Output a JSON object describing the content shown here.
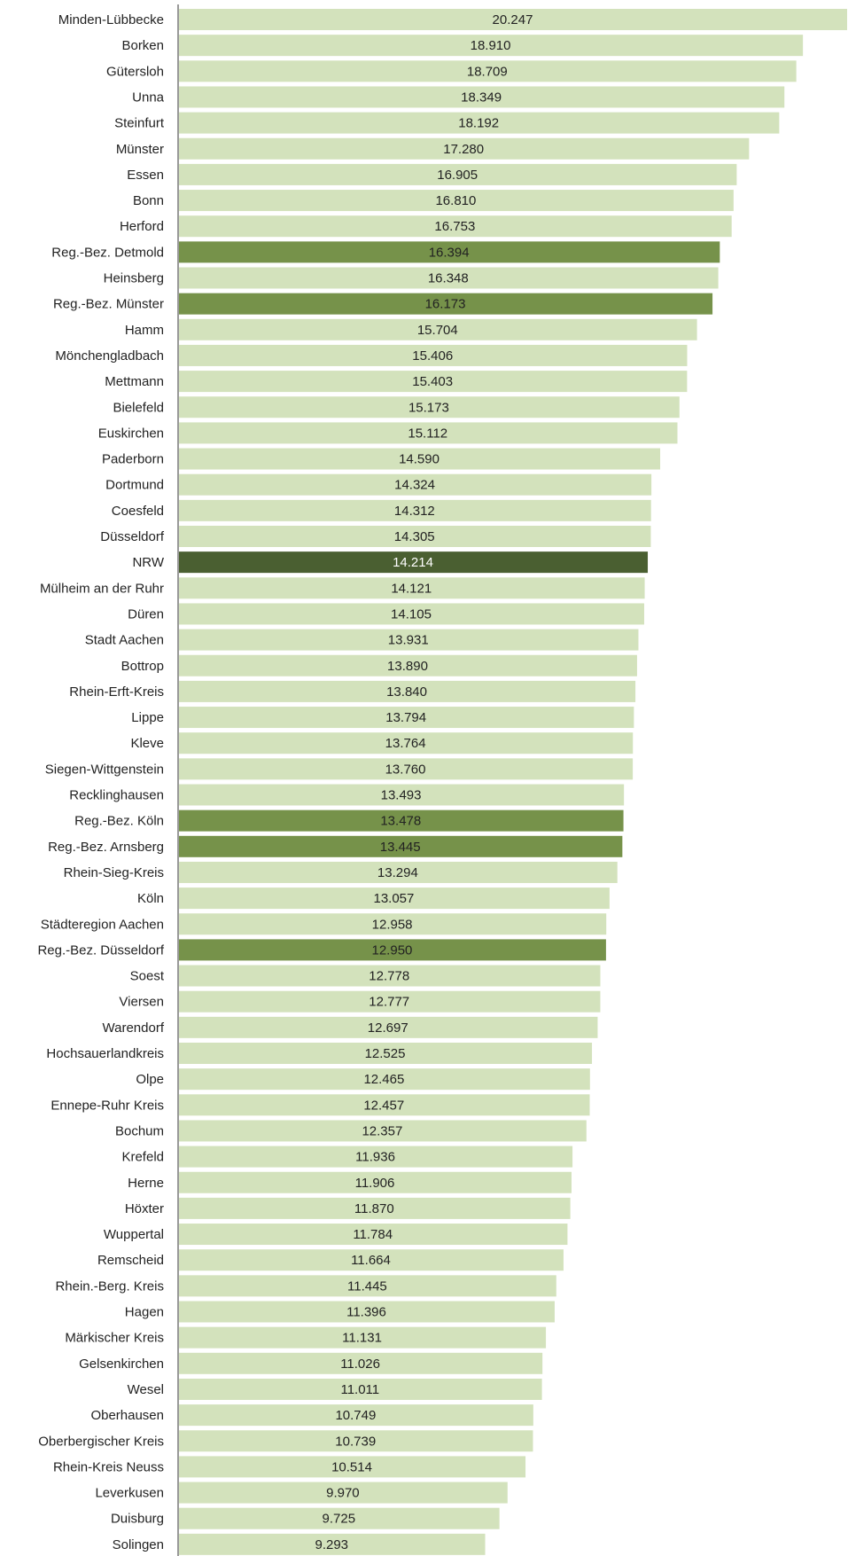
{
  "chart_data": {
    "type": "bar",
    "orientation": "horizontal",
    "title": "",
    "xlabel": "",
    "ylabel": "",
    "xlim": [
      0,
      20247
    ],
    "grid": false,
    "legend": "none",
    "colors": {
      "default": "#d3e2bc",
      "region": "#76924a",
      "state": "#4a5f31",
      "axis": "#999999"
    },
    "categories": [
      "Minden-Lübbecke",
      "Borken",
      "Gütersloh",
      "Unna",
      "Steinfurt",
      "Münster",
      "Essen",
      "Bonn",
      "Herford",
      "Reg.-Bez. Detmold",
      "Heinsberg",
      "Reg.-Bez. Münster",
      "Hamm",
      "Mönchengladbach",
      "Mettmann",
      "Bielefeld",
      "Euskirchen",
      "Paderborn",
      "Dortmund",
      "Coesfeld",
      "Düsseldorf",
      "NRW",
      "Mülheim an der Ruhr",
      "Düren",
      "Stadt Aachen",
      "Bottrop",
      "Rhein-Erft-Kreis",
      "Lippe",
      "Kleve",
      "Siegen-Wittgenstein",
      "Recklinghausen",
      "Reg.-Bez. Köln",
      "Reg.-Bez. Arnsberg",
      "Rhein-Sieg-Kreis",
      "Köln",
      "Städteregion Aachen",
      "Reg.-Bez. Düsseldorf",
      "Soest",
      "Viersen",
      "Warendorf",
      "Hochsauerlandkreis",
      "Olpe",
      "Ennepe-Ruhr Kreis",
      "Bochum",
      "Krefeld",
      "Herne",
      "Höxter",
      "Wuppertal",
      "Remscheid",
      "Rhein.-Berg. Kreis",
      "Hagen",
      "Märkischer Kreis",
      "Gelsenkirchen",
      "Wesel",
      "Oberhausen",
      "Oberbergischer Kreis",
      "Rhein-Kreis Neuss",
      "Leverkusen",
      "Duisburg",
      "Solingen"
    ],
    "values": [
      20247,
      18910,
      18709,
      18349,
      18192,
      17280,
      16905,
      16810,
      16753,
      16394,
      16348,
      16173,
      15704,
      15406,
      15403,
      15173,
      15112,
      14590,
      14324,
      14312,
      14305,
      14214,
      14121,
      14105,
      13931,
      13890,
      13840,
      13794,
      13764,
      13760,
      13493,
      13478,
      13445,
      13294,
      13057,
      12958,
      12950,
      12778,
      12777,
      12697,
      12525,
      12465,
      12457,
      12357,
      11936,
      11906,
      11870,
      11784,
      11664,
      11445,
      11396,
      11131,
      11026,
      11011,
      10749,
      10739,
      10514,
      9970,
      9725,
      9293
    ],
    "value_labels": [
      "20.247",
      "18.910",
      "18.709",
      "18.349",
      "18.192",
      "17.280",
      "16.905",
      "16.810",
      "16.753",
      "16.394",
      "16.348",
      "16.173",
      "15.704",
      "15.406",
      "15.403",
      "15.173",
      "15.112",
      "14.590",
      "14.324",
      "14.312",
      "14.305",
      "14.214",
      "14.121",
      "14.105",
      "13.931",
      "13.890",
      "13.840",
      "13.794",
      "13.764",
      "13.760",
      "13.493",
      "13.478",
      "13.445",
      "13.294",
      "13.057",
      "12.958",
      "12.950",
      "12.778",
      "12.777",
      "12.697",
      "12.525",
      "12.465",
      "12.457",
      "12.357",
      "11.936",
      "11.906",
      "11.870",
      "11.784",
      "11.664",
      "11.445",
      "11.396",
      "11.131",
      "11.026",
      "11.011",
      "10.749",
      "10.739",
      "10.514",
      "9.970",
      "9.725",
      "9.293"
    ],
    "highlight": {
      "region": [
        "Reg.-Bez. Detmold",
        "Reg.-Bez. Münster",
        "Reg.-Bez. Köln",
        "Reg.-Bez. Arnsberg",
        "Reg.-Bez. Düsseldorf"
      ],
      "state": [
        "NRW"
      ]
    }
  }
}
